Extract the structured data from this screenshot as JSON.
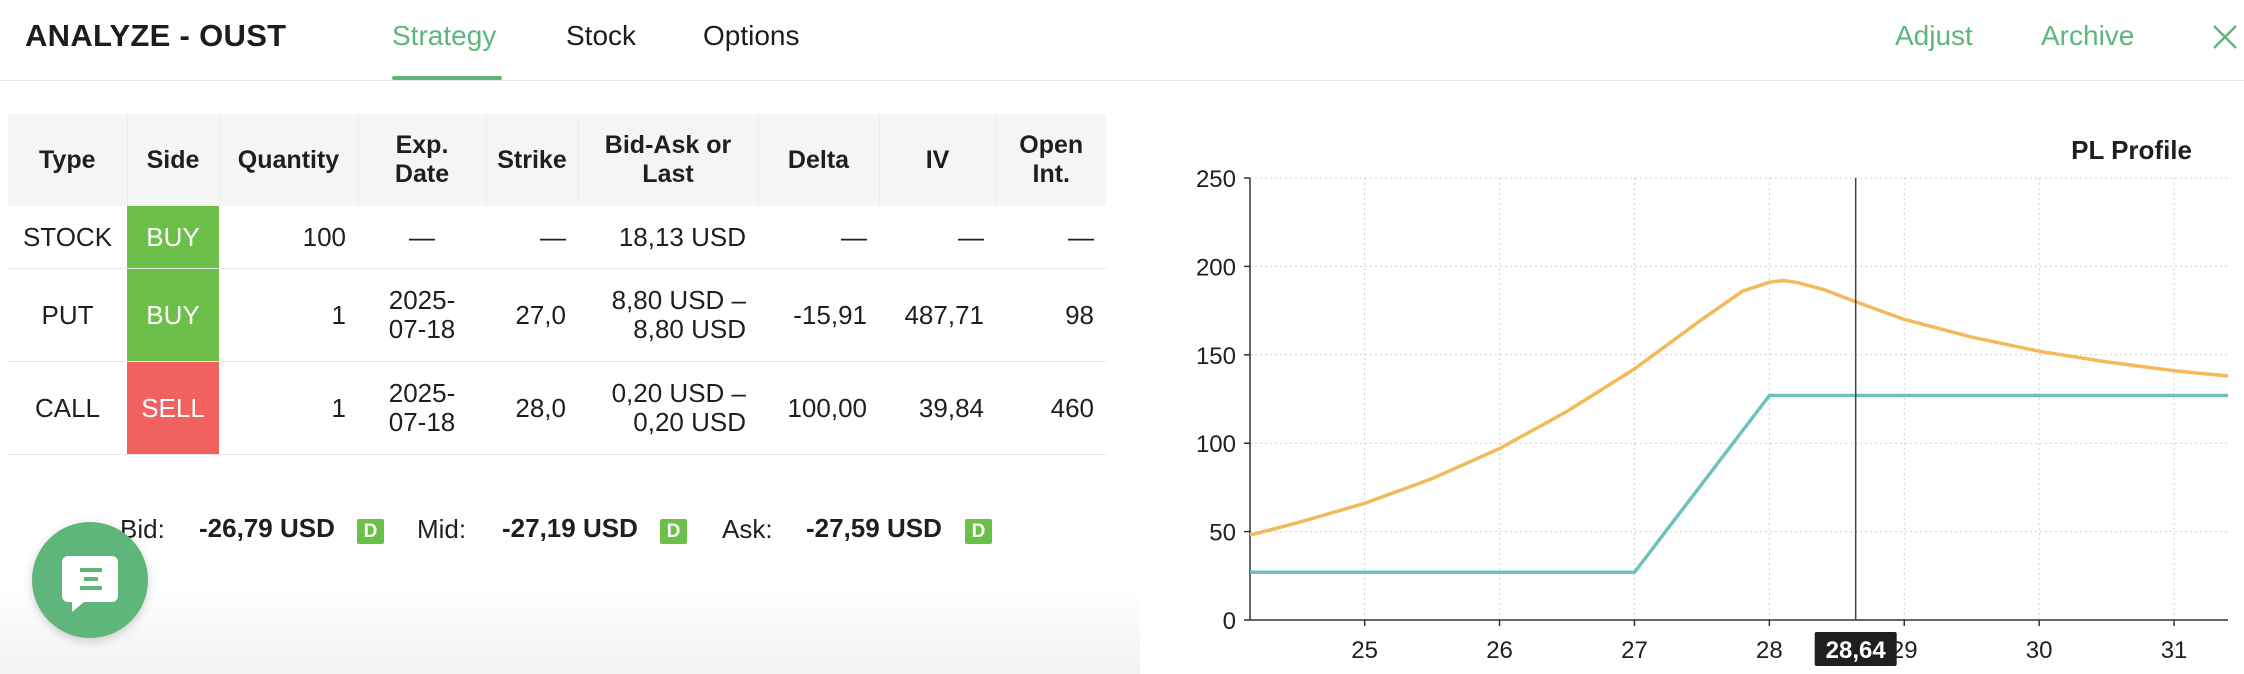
{
  "header": {
    "title": "ANALYZE - OUST",
    "tabs": [
      {
        "label": "Strategy",
        "active": true
      },
      {
        "label": "Stock",
        "active": false
      },
      {
        "label": "Options",
        "active": false
      }
    ],
    "actions": {
      "adjust": "Adjust",
      "archive": "Archive"
    },
    "close_icon": "close-icon"
  },
  "table": {
    "headers": [
      "Type",
      "Side",
      "Quantity",
      "Exp. Date",
      "Strike",
      "Bid-Ask or Last",
      "Delta",
      "IV",
      "Open Int."
    ],
    "rows": [
      {
        "type": "STOCK",
        "side": "BUY",
        "quantity": "100",
        "exp": "—",
        "strike": "—",
        "bid_ask": "18,13 USD",
        "delta": "—",
        "iv": "—",
        "open_int": "—"
      },
      {
        "type": "PUT",
        "side": "BUY",
        "quantity": "1",
        "exp_line1": "2025-",
        "exp_line2": "07-18",
        "strike": "27,0",
        "bid_line1": "8,80 USD –",
        "bid_line2": "8,80 USD",
        "delta": "-15,91",
        "iv": "487,71",
        "open_int": "98"
      },
      {
        "type": "CALL",
        "side": "SELL",
        "quantity": "1",
        "exp_line1": "2025-",
        "exp_line2": "07-18",
        "strike": "28,0",
        "bid_line1": "0,20 USD –",
        "bid_line2": "0,20 USD",
        "delta": "100,00",
        "iv": "39,84",
        "open_int": "460"
      }
    ]
  },
  "summary": {
    "bid_label": "Bid:",
    "bid_value": "-26,79 USD",
    "mid_label": "Mid:",
    "mid_value": "-27,19 USD",
    "ask_label": "Ask:",
    "ask_value": "-27,59 USD",
    "badge": "D"
  },
  "colors": {
    "accent": "#5fb67a",
    "buy": "#6cc04a",
    "sell": "#f06160",
    "curve_orange": "#f3b95a",
    "curve_teal": "#6fc1bb"
  },
  "chart_data": {
    "type": "line",
    "title": "PL Profile",
    "xlim": [
      24.15,
      31.4
    ],
    "ylim": [
      0,
      250
    ],
    "x_ticks": [
      "25",
      "26",
      "27",
      "28",
      "29",
      "30",
      "31"
    ],
    "y_ticks": [
      "0",
      "50",
      "100",
      "150",
      "200",
      "250"
    ],
    "grid": true,
    "cursor_x": 28.64,
    "cursor_label": "28,64",
    "series": [
      {
        "color": "#f3b95a",
        "x": [
          24.15,
          24.5,
          25.0,
          25.5,
          26.0,
          26.5,
          27.0,
          27.5,
          27.8,
          28.0,
          28.1,
          28.2,
          28.4,
          28.64,
          29.0,
          29.5,
          30.0,
          30.5,
          31.0,
          31.4
        ],
        "y": [
          48,
          55,
          66,
          80,
          97,
          118,
          142,
          170,
          186,
          191,
          192,
          191,
          187,
          180,
          170,
          160,
          152,
          146,
          141,
          138
        ]
      },
      {
        "color": "#6fc1bb",
        "x": [
          24.15,
          27.0,
          28.0,
          31.4
        ],
        "y": [
          27,
          27,
          127,
          127
        ]
      }
    ]
  }
}
